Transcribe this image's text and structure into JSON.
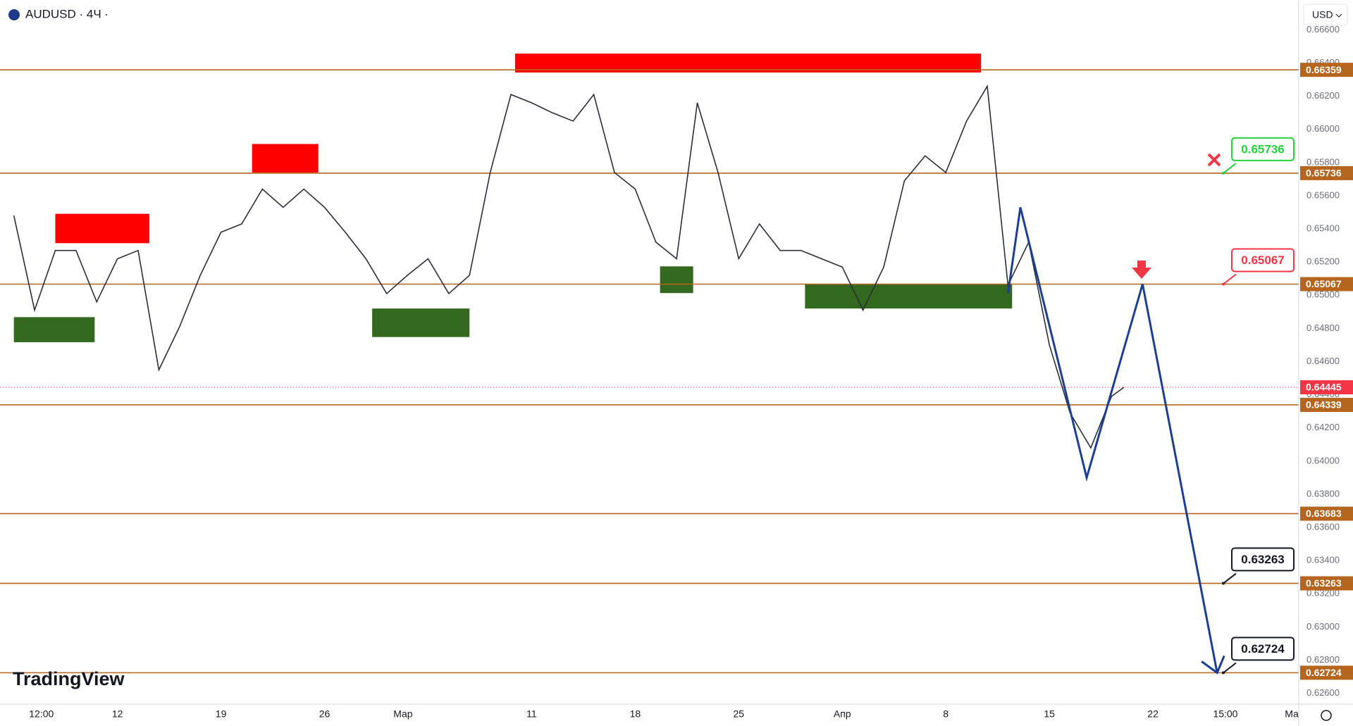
{
  "chart_data": {
    "type": "line",
    "title": "AUDUSD · 4Ч ·",
    "currency": "USD",
    "watermark": "TradingView",
    "x": [
      -5,
      -4,
      -3,
      -2,
      -1,
      0,
      1,
      2,
      3,
      4,
      5,
      6,
      7,
      8,
      9,
      10,
      11,
      12,
      13,
      14,
      15,
      16,
      17,
      18,
      19,
      20,
      21,
      22,
      23,
      24,
      25,
      26,
      27,
      28,
      29,
      30,
      31,
      32,
      33,
      34,
      35,
      36,
      37,
      38,
      39,
      40,
      41,
      42,
      43,
      44,
      45,
      46,
      47,
      48,
      48.6
    ],
    "series": [
      {
        "color": "#2a2e39",
        "values": [
          0.6548,
          0.6491,
          0.6527,
          0.6527,
          0.6496,
          0.6522,
          0.6527,
          0.6455,
          0.6481,
          0.6512,
          0.6538,
          0.6543,
          0.6564,
          0.6553,
          0.6564,
          0.6553,
          0.6538,
          0.6522,
          0.6501,
          0.6512,
          0.6522,
          0.6501,
          0.6512,
          0.6574,
          0.6621,
          0.6616,
          0.661,
          0.6605,
          0.6621,
          0.6574,
          0.6564,
          0.6532,
          0.6522,
          0.6616,
          0.6574,
          0.6522,
          0.6543,
          0.6527,
          0.6527,
          0.6522,
          0.6517,
          0.6491,
          0.6517,
          0.6569,
          0.6584,
          0.6574,
          0.6605,
          0.6626,
          0.6506,
          0.6532,
          0.647,
          0.6429,
          0.6408,
          0.6439,
          0.64445
        ]
      }
    ],
    "xlim": [
      -5.67,
      57.04
    ],
    "xticks": [
      {
        "value": -3.67,
        "label": "12:00"
      },
      {
        "value": 0,
        "label": "12"
      },
      {
        "value": 5,
        "label": "19"
      },
      {
        "value": 10,
        "label": "26"
      },
      {
        "value": 13.79,
        "label": "Мар"
      },
      {
        "value": 20,
        "label": "11"
      },
      {
        "value": 25,
        "label": "18"
      },
      {
        "value": 30,
        "label": "25"
      },
      {
        "value": 35,
        "label": "Апр"
      },
      {
        "value": 40,
        "label": "8"
      },
      {
        "value": 45,
        "label": "15"
      },
      {
        "value": 50,
        "label": "22"
      },
      {
        "value": 53.5,
        "label": "15:00"
      },
      {
        "value": 56.7,
        "label": "Ма"
      }
    ],
    "ylim": [
      0.6256,
      0.6678
    ],
    "yticks": [
      {
        "value": 0.626,
        "label": "0.62600"
      },
      {
        "value": 0.628,
        "label": "0.62800"
      },
      {
        "value": 0.63,
        "label": "0.63000"
      },
      {
        "value": 0.632,
        "label": "0.63200"
      },
      {
        "value": 0.634,
        "label": "0.63400"
      },
      {
        "value": 0.636,
        "label": "0.63600"
      },
      {
        "value": 0.638,
        "label": "0.63800"
      },
      {
        "value": 0.64,
        "label": "0.64000"
      },
      {
        "value": 0.642,
        "label": "0.64200"
      },
      {
        "value": 0.644,
        "label": "0.64400"
      },
      {
        "value": 0.646,
        "label": "0.64600"
      },
      {
        "value": 0.648,
        "label": "0.64800"
      },
      {
        "value": 0.65,
        "label": "0.65000"
      },
      {
        "value": 0.652,
        "label": "0.65200"
      },
      {
        "value": 0.654,
        "label": "0.65400"
      },
      {
        "value": 0.656,
        "label": "0.65600"
      },
      {
        "value": 0.658,
        "label": "0.65800"
      },
      {
        "value": 0.66,
        "label": "0.66000"
      },
      {
        "value": 0.662,
        "label": "0.66200"
      },
      {
        "value": 0.664,
        "label": "0.66400"
      },
      {
        "value": 0.666,
        "label": "0.66600"
      }
    ],
    "levels": [
      0.66359,
      0.65736,
      0.65067,
      0.64339,
      0.63683,
      0.63263,
      0.62724
    ],
    "level_color": "#b5651d",
    "last_price": 0.64445,
    "last_price_color": "#f23645",
    "zones": [
      {
        "x": [
          -3,
          1.54
        ],
        "y": [
          0.65314,
          0.65491
        ],
        "color": "#ff0000"
      },
      {
        "x": [
          6.5,
          9.7
        ],
        "y": [
          0.6574,
          0.65912
        ],
        "color": "#ff0000"
      },
      {
        "x": [
          19.2,
          41.7
        ],
        "y": [
          0.66343,
          0.66457
        ],
        "color": "#ff0000"
      },
      {
        "x": [
          -5,
          -1.1
        ],
        "y": [
          0.64717,
          0.64868
        ],
        "color": "#33691e"
      },
      {
        "x": [
          12.3,
          17.0
        ],
        "y": [
          0.64748,
          0.6492
        ],
        "color": "#33691e"
      },
      {
        "x": [
          26.2,
          27.8
        ],
        "y": [
          0.65013,
          0.65174
        ],
        "color": "#33691e"
      },
      {
        "x": [
          33.2,
          43.2
        ],
        "y": [
          0.6492,
          0.65065
        ],
        "color": "#33691e"
      }
    ],
    "projection": {
      "color": "#1c3f95",
      "x": [
        43,
        43.6,
        46.8,
        49.5,
        53.1
      ],
      "values": [
        0.6501,
        0.6553,
        0.639,
        0.65067,
        0.62724
      ]
    },
    "callouts": [
      {
        "x": 53.4,
        "value": 0.65736,
        "color": "#22d43a"
      },
      {
        "x": 53.4,
        "value": 0.65067,
        "color": "#f23645"
      },
      {
        "x": 53.4,
        "value": 0.63263,
        "color": "#131722"
      },
      {
        "x": 53.4,
        "value": 0.62724,
        "color": "#131722"
      }
    ]
  }
}
